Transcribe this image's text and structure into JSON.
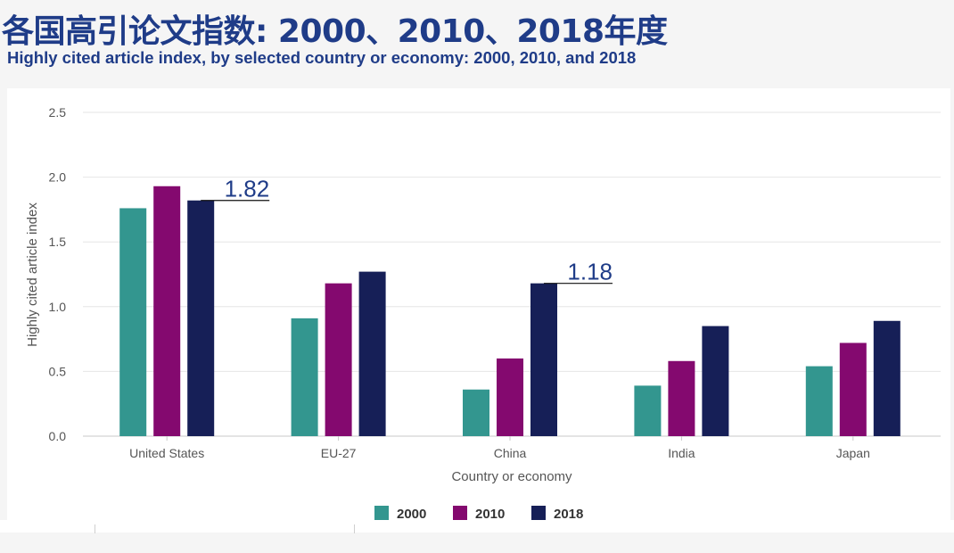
{
  "header": {
    "title_cn": "各国高引论文指数: 2000、2010、2018年度",
    "title_en": "Highly cited article index, by selected country or economy: 2000, 2010, and 2018"
  },
  "chart_data": {
    "type": "bar",
    "title": "Highly cited article index, by selected country or economy: 2000, 2010, and 2018",
    "xlabel": "Country or economy",
    "ylabel": "Highly cited article index",
    "ylim": [
      0,
      2.5
    ],
    "yticks": [
      "0.0",
      "0.5",
      "1.0",
      "1.5",
      "2.0",
      "2.5"
    ],
    "grid": true,
    "legend_position": "bottom-center",
    "categories": [
      "United States",
      "EU-27",
      "China",
      "India",
      "Japan"
    ],
    "series": [
      {
        "name": "2000",
        "color": "#33968f",
        "values": [
          1.76,
          0.91,
          0.36,
          0.39,
          0.54
        ]
      },
      {
        "name": "2010",
        "color": "#84096f",
        "values": [
          1.93,
          1.18,
          0.6,
          0.58,
          0.72
        ]
      },
      {
        "name": "2018",
        "color": "#161f57",
        "values": [
          1.82,
          1.27,
          1.18,
          0.85,
          0.89
        ]
      }
    ],
    "annotations": [
      {
        "text": "1.82",
        "category": "United States",
        "series": "2018",
        "value": 1.82
      },
      {
        "text": "1.18",
        "category": "China",
        "series": "2018",
        "value": 1.18
      }
    ]
  }
}
